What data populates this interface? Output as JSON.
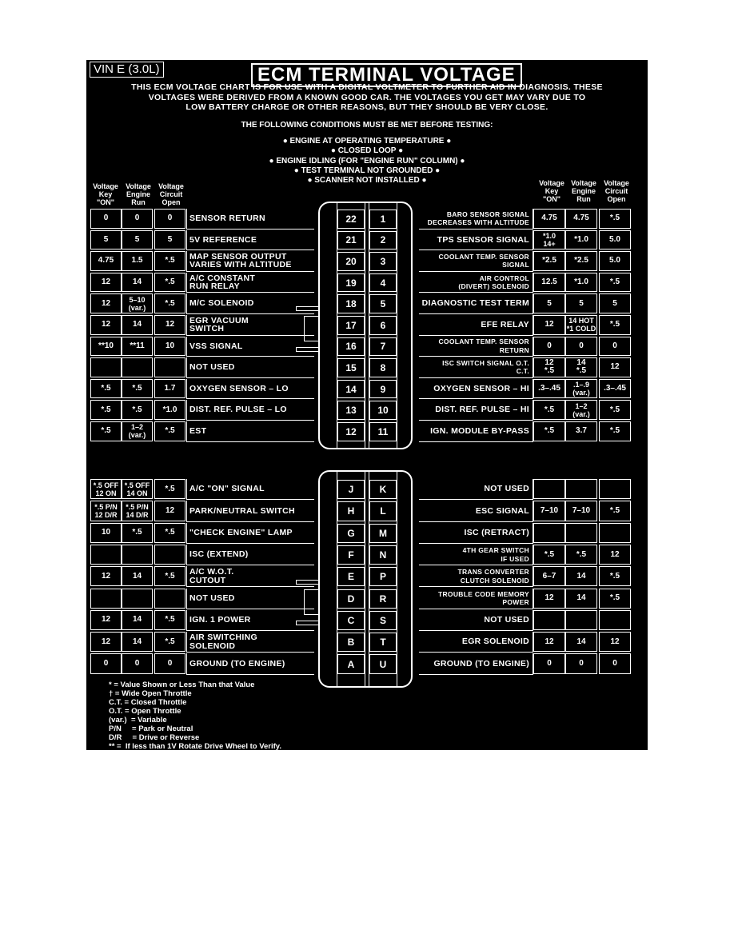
{
  "vin_label": "VIN E (3.0L)",
  "title": "ECM TERMINAL VOLTAGE",
  "intro": [
    "THIS ECM VOLTAGE CHART IS FOR USE WITH A DIGITAL VOLTMETER TO FURTHER AID IN DIAGNOSIS. THESE",
    "VOLTAGES WERE DERIVED FROM A KNOWN GOOD CAR. THE VOLTAGES YOU GET MAY VARY DUE TO",
    "LOW BATTERY CHARGE OR OTHER REASONS, BUT THEY SHOULD BE VERY CLOSE."
  ],
  "conditions_heading": "THE FOLLOWING CONDITIONS MUST BE MET BEFORE TESTING:",
  "conditions": [
    "● ENGINE AT OPERATING TEMPERATURE ●",
    "● CLOSED LOOP ●",
    "● ENGINE IDLING (FOR \"ENGINE RUN\" COLUMN) ●",
    "● TEST TERMINAL NOT GROUNDED ●",
    "● SCANNER NOT INSTALLED ●"
  ],
  "column_headers": [
    "Voltage\nKey\n\"ON\"",
    "Voltage\nEngine\nRun",
    "Voltage\nCircuit\nOpen"
  ],
  "top_left": [
    {
      "pin": "22",
      "label": "SENSOR RETURN",
      "key_on": "0",
      "engine_run": "0",
      "circuit_open": "0"
    },
    {
      "pin": "21",
      "label": "5V REFERENCE",
      "key_on": "5",
      "engine_run": "5",
      "circuit_open": "5"
    },
    {
      "pin": "20",
      "label": "MAP SENSOR OUTPUT\nVARIES WITH ALTITUDE",
      "key_on": "4.75",
      "engine_run": "1.5",
      "circuit_open": "*.5"
    },
    {
      "pin": "19",
      "label": "A/C CONSTANT\nRUN RELAY",
      "key_on": "12",
      "engine_run": "14",
      "circuit_open": "*.5"
    },
    {
      "pin": "18",
      "label": "M/C SOLENOID",
      "key_on": "12",
      "engine_run": "5–10\n(var.)",
      "circuit_open": "*.5"
    },
    {
      "pin": "17",
      "label": "EGR VACUUM\nSWITCH",
      "key_on": "12",
      "engine_run": "14",
      "circuit_open": "12"
    },
    {
      "pin": "16",
      "label": "VSS SIGNAL",
      "key_on": "**10",
      "engine_run": "**11",
      "circuit_open": "10"
    },
    {
      "pin": "15",
      "label": "NOT USED",
      "key_on": "",
      "engine_run": "",
      "circuit_open": ""
    },
    {
      "pin": "14",
      "label": "OXYGEN SENSOR – LO",
      "key_on": "*.5",
      "engine_run": "*.5",
      "circuit_open": "1.7"
    },
    {
      "pin": "13",
      "label": "DIST. REF. PULSE – LO",
      "key_on": "*.5",
      "engine_run": "*.5",
      "circuit_open": "*1.0"
    },
    {
      "pin": "12",
      "label": "EST",
      "key_on": "*.5",
      "engine_run": "1–2\n(var.)",
      "circuit_open": "*.5"
    }
  ],
  "top_right": [
    {
      "pin": "1",
      "label": "BARO SENSOR SIGNAL\nDECREASES WITH ALTITUDE",
      "key_on": "4.75",
      "engine_run": "4.75",
      "circuit_open": "*.5"
    },
    {
      "pin": "2",
      "label": "TPS SENSOR SIGNAL",
      "key_on": "*1.0\n14+",
      "engine_run": "*1.0",
      "circuit_open": "5.0"
    },
    {
      "pin": "3",
      "label": "COOLANT TEMP. SENSOR\nSIGNAL",
      "key_on": "*2.5",
      "engine_run": "*2.5",
      "circuit_open": "5.0"
    },
    {
      "pin": "4",
      "label": "AIR CONTROL\n(DIVERT) SOLENOID",
      "key_on": "12.5",
      "engine_run": "*1.0",
      "circuit_open": "*.5"
    },
    {
      "pin": "5",
      "label": "DIAGNOSTIC TEST TERM",
      "key_on": "5",
      "engine_run": "5",
      "circuit_open": "5"
    },
    {
      "pin": "6",
      "label": "EFE RELAY",
      "key_on": "12",
      "engine_run": "14 HOT\n*1 COLD",
      "circuit_open": "*.5"
    },
    {
      "pin": "7",
      "label": "COOLANT TEMP. SENSOR\nRETURN",
      "key_on": "0",
      "engine_run": "0",
      "circuit_open": "0"
    },
    {
      "pin": "8",
      "label": "ISC SWITCH SIGNAL  O.T.\nC.T.",
      "key_on": "12\n*.5",
      "engine_run": "14\n*.5",
      "circuit_open": "12"
    },
    {
      "pin": "9",
      "label": "OXYGEN SENSOR – HI",
      "key_on": ".3–.45",
      "engine_run": ".1–.9\n(var.)",
      "circuit_open": ".3–.45"
    },
    {
      "pin": "10",
      "label": "DIST. REF. PULSE – HI",
      "key_on": "*.5",
      "engine_run": "1–2\n(var.)",
      "circuit_open": "*.5"
    },
    {
      "pin": "11",
      "label": "IGN. MODULE BY-PASS",
      "key_on": "*.5",
      "engine_run": "3.7",
      "circuit_open": "*.5"
    }
  ],
  "bottom_left": [
    {
      "pin": "J",
      "label": "A/C \"ON\" SIGNAL",
      "key_on": "*.5 OFF\n12 ON",
      "engine_run": "*.5 OFF\n14 ON",
      "circuit_open": "*.5"
    },
    {
      "pin": "H",
      "label": "PARK/NEUTRAL SWITCH",
      "key_on": "*.5 P/N\n12 D/R",
      "engine_run": "*.5 P/N\n14 D/R",
      "circuit_open": "12"
    },
    {
      "pin": "G",
      "label": "\"CHECK ENGINE\" LAMP",
      "key_on": "10",
      "engine_run": "*.5",
      "circuit_open": "*.5"
    },
    {
      "pin": "F",
      "label": "ISC (EXTEND)",
      "key_on": "",
      "engine_run": "",
      "circuit_open": ""
    },
    {
      "pin": "E",
      "label": "A/C W.O.T.\nCUTOUT",
      "key_on": "12",
      "engine_run": "14",
      "circuit_open": "*.5"
    },
    {
      "pin": "D",
      "label": "NOT USED",
      "key_on": "",
      "engine_run": "",
      "circuit_open": ""
    },
    {
      "pin": "C",
      "label": "IGN. 1 POWER",
      "key_on": "12",
      "engine_run": "14",
      "circuit_open": "*.5"
    },
    {
      "pin": "B",
      "label": "AIR SWITCHING\n   SOLENOID",
      "key_on": "12",
      "engine_run": "14",
      "circuit_open": "*.5"
    },
    {
      "pin": "A",
      "label": "GROUND (TO ENGINE)",
      "key_on": "0",
      "engine_run": "0",
      "circuit_open": "0"
    }
  ],
  "bottom_right": [
    {
      "pin": "K",
      "label": "NOT USED",
      "key_on": "",
      "engine_run": "",
      "circuit_open": ""
    },
    {
      "pin": "L",
      "label": "ESC    SIGNAL",
      "key_on": "7–10",
      "engine_run": "7–10",
      "circuit_open": "*.5"
    },
    {
      "pin": "M",
      "label": "ISC (RETRACT)",
      "key_on": "",
      "engine_run": "",
      "circuit_open": ""
    },
    {
      "pin": "N",
      "label": "4TH GEAR SWITCH\nIF USED",
      "key_on": "*.5",
      "engine_run": "*.5",
      "circuit_open": "12"
    },
    {
      "pin": "P",
      "label": "TRANS CONVERTER\nCLUTCH SOLENOID",
      "key_on": "6–7",
      "engine_run": "14",
      "circuit_open": "*.5"
    },
    {
      "pin": "R",
      "label": "TROUBLE CODE MEMORY\nPOWER",
      "key_on": "12",
      "engine_run": "14",
      "circuit_open": "*.5"
    },
    {
      "pin": "S",
      "label": "NOT USED",
      "key_on": "",
      "engine_run": "",
      "circuit_open": ""
    },
    {
      "pin": "T",
      "label": "EGR SOLENOID",
      "key_on": "12",
      "engine_run": "14",
      "circuit_open": "12"
    },
    {
      "pin": "U",
      "label": "GROUND (TO ENGINE)",
      "key_on": "0",
      "engine_run": "0",
      "circuit_open": "0"
    }
  ],
  "legend": [
    "* = Value Shown or Less Than that Value",
    "† = Wide Open Throttle",
    "C.T. = Closed Throttle",
    "O.T. = Open Throttle",
    "(var.)  = Variable",
    "P/N     = Park or Neutral",
    "D/R     = Drive or Reverse",
    "** =  If less than 1V Rotate Drive Wheel to Verify."
  ]
}
